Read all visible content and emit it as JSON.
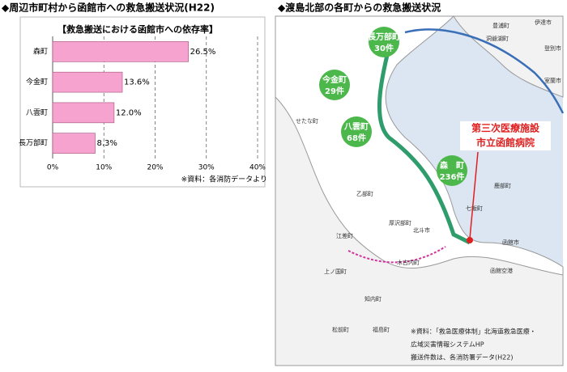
{
  "chart_data": {
    "type": "bar",
    "orientation": "horizontal",
    "title": "◆周辺市町村から函館市への救急搬送状況(H22)",
    "subtitle": "【救急搬送における函館市への依存率】",
    "categories": [
      "森町",
      "今金町",
      "八雲町",
      "長万部町"
    ],
    "values": [
      26.5,
      13.6,
      12.0,
      8.3
    ],
    "value_labels": [
      "26.5%",
      "13.6%",
      "12.0%",
      "8.3%"
    ],
    "color": "#f7a3d0",
    "xlim": [
      0,
      40
    ],
    "xticks": [
      {
        "value": 0,
        "label": "0%"
      },
      {
        "value": 10,
        "label": "10%"
      },
      {
        "value": 20,
        "label": "20%"
      },
      {
        "value": 30,
        "label": "30%"
      },
      {
        "value": 40,
        "label": "40%"
      }
    ],
    "grid": true,
    "note": "※資料：各消防データより"
  },
  "map": {
    "title": "◆渡島北部の各町からの救急搬送状況",
    "bubbles": [
      {
        "name": "長万部町",
        "count": "30件"
      },
      {
        "name": "今金町",
        "count": "29件"
      },
      {
        "name": "八雲町",
        "count": "68件"
      },
      {
        "name": "森　町",
        "count": "236件"
      }
    ],
    "callout": [
      "第三次医療施設",
      "市立函館病院"
    ],
    "places": [
      "せたな町",
      "乙部町",
      "厚沢部町",
      "江差町",
      "上ノ国町",
      "北斗市",
      "木古内町",
      "知内町",
      "松前町",
      "福島町",
      "函館市",
      "七飯町",
      "鹿部町",
      "豊浦町",
      "洞爺湖町",
      "伊達市",
      "室蘭市",
      "登別市",
      "函館空港"
    ],
    "notes": [
      "※資料：「救急医療体制」北海道救急医療・",
      "広域災害情報システムHP",
      "搬送件数は、各消防署データ(H22)"
    ]
  }
}
